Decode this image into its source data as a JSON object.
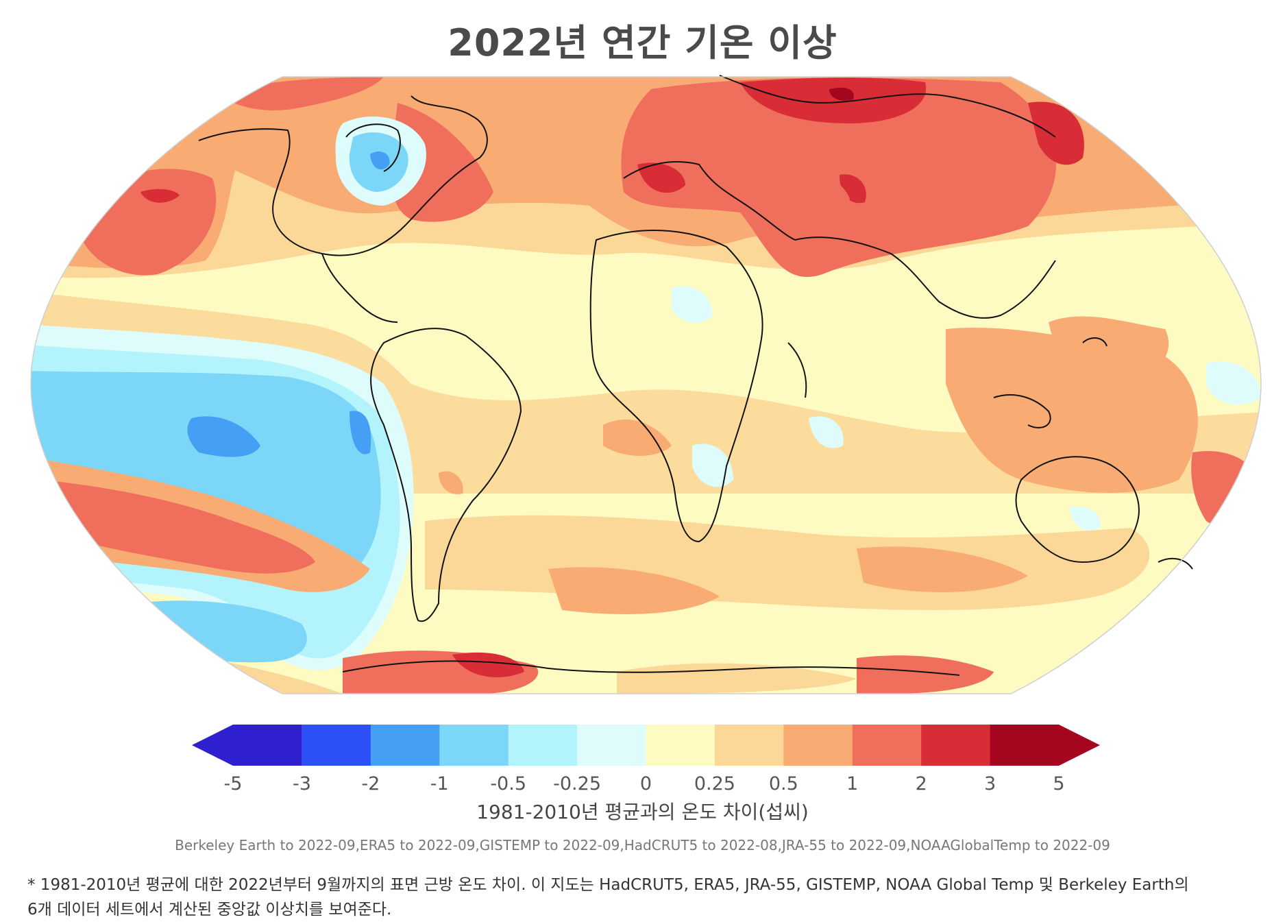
{
  "title": "2022년 연간 기온 이상",
  "legend": {
    "ticks": [
      "-5",
      "-3",
      "-2",
      "-1",
      "-0.5",
      "-0.25",
      "0",
      "0.25",
      "0.5",
      "1",
      "2",
      "3",
      "5"
    ],
    "colors": [
      "#2e1fcf",
      "#2d4ff7",
      "#45a0f5",
      "#7cd6f8",
      "#b3f3fb",
      "#defcfc",
      "#fefbc2",
      "#fbd898",
      "#f8ac74",
      "#f06e5c",
      "#d82c36",
      "#a4061f"
    ],
    "label": "1981-2010년 평균과의 온도 차이(섭씨)"
  },
  "source": "Berkeley Earth to 2022-09,ERA5 to 2022-09,GISTEMP to 2022-09,HadCRUT5 to 2022-08,JRA-55 to 2022-09,NOAAGlobalTemp to 2022-09",
  "footnote": {
    "line1": "* 1981-2010년 평균에 대한 2022년부터 9월까지의 표면 근방 온도 차이. 이 지도는 HadCRUT5, ERA5, JRA-55, GISTEMP, NOAA Global Temp 및 Berkeley Earth의",
    "line2": "6개 데이터 세트에서 계산된 중앙값 이상치를 보여준다."
  }
}
